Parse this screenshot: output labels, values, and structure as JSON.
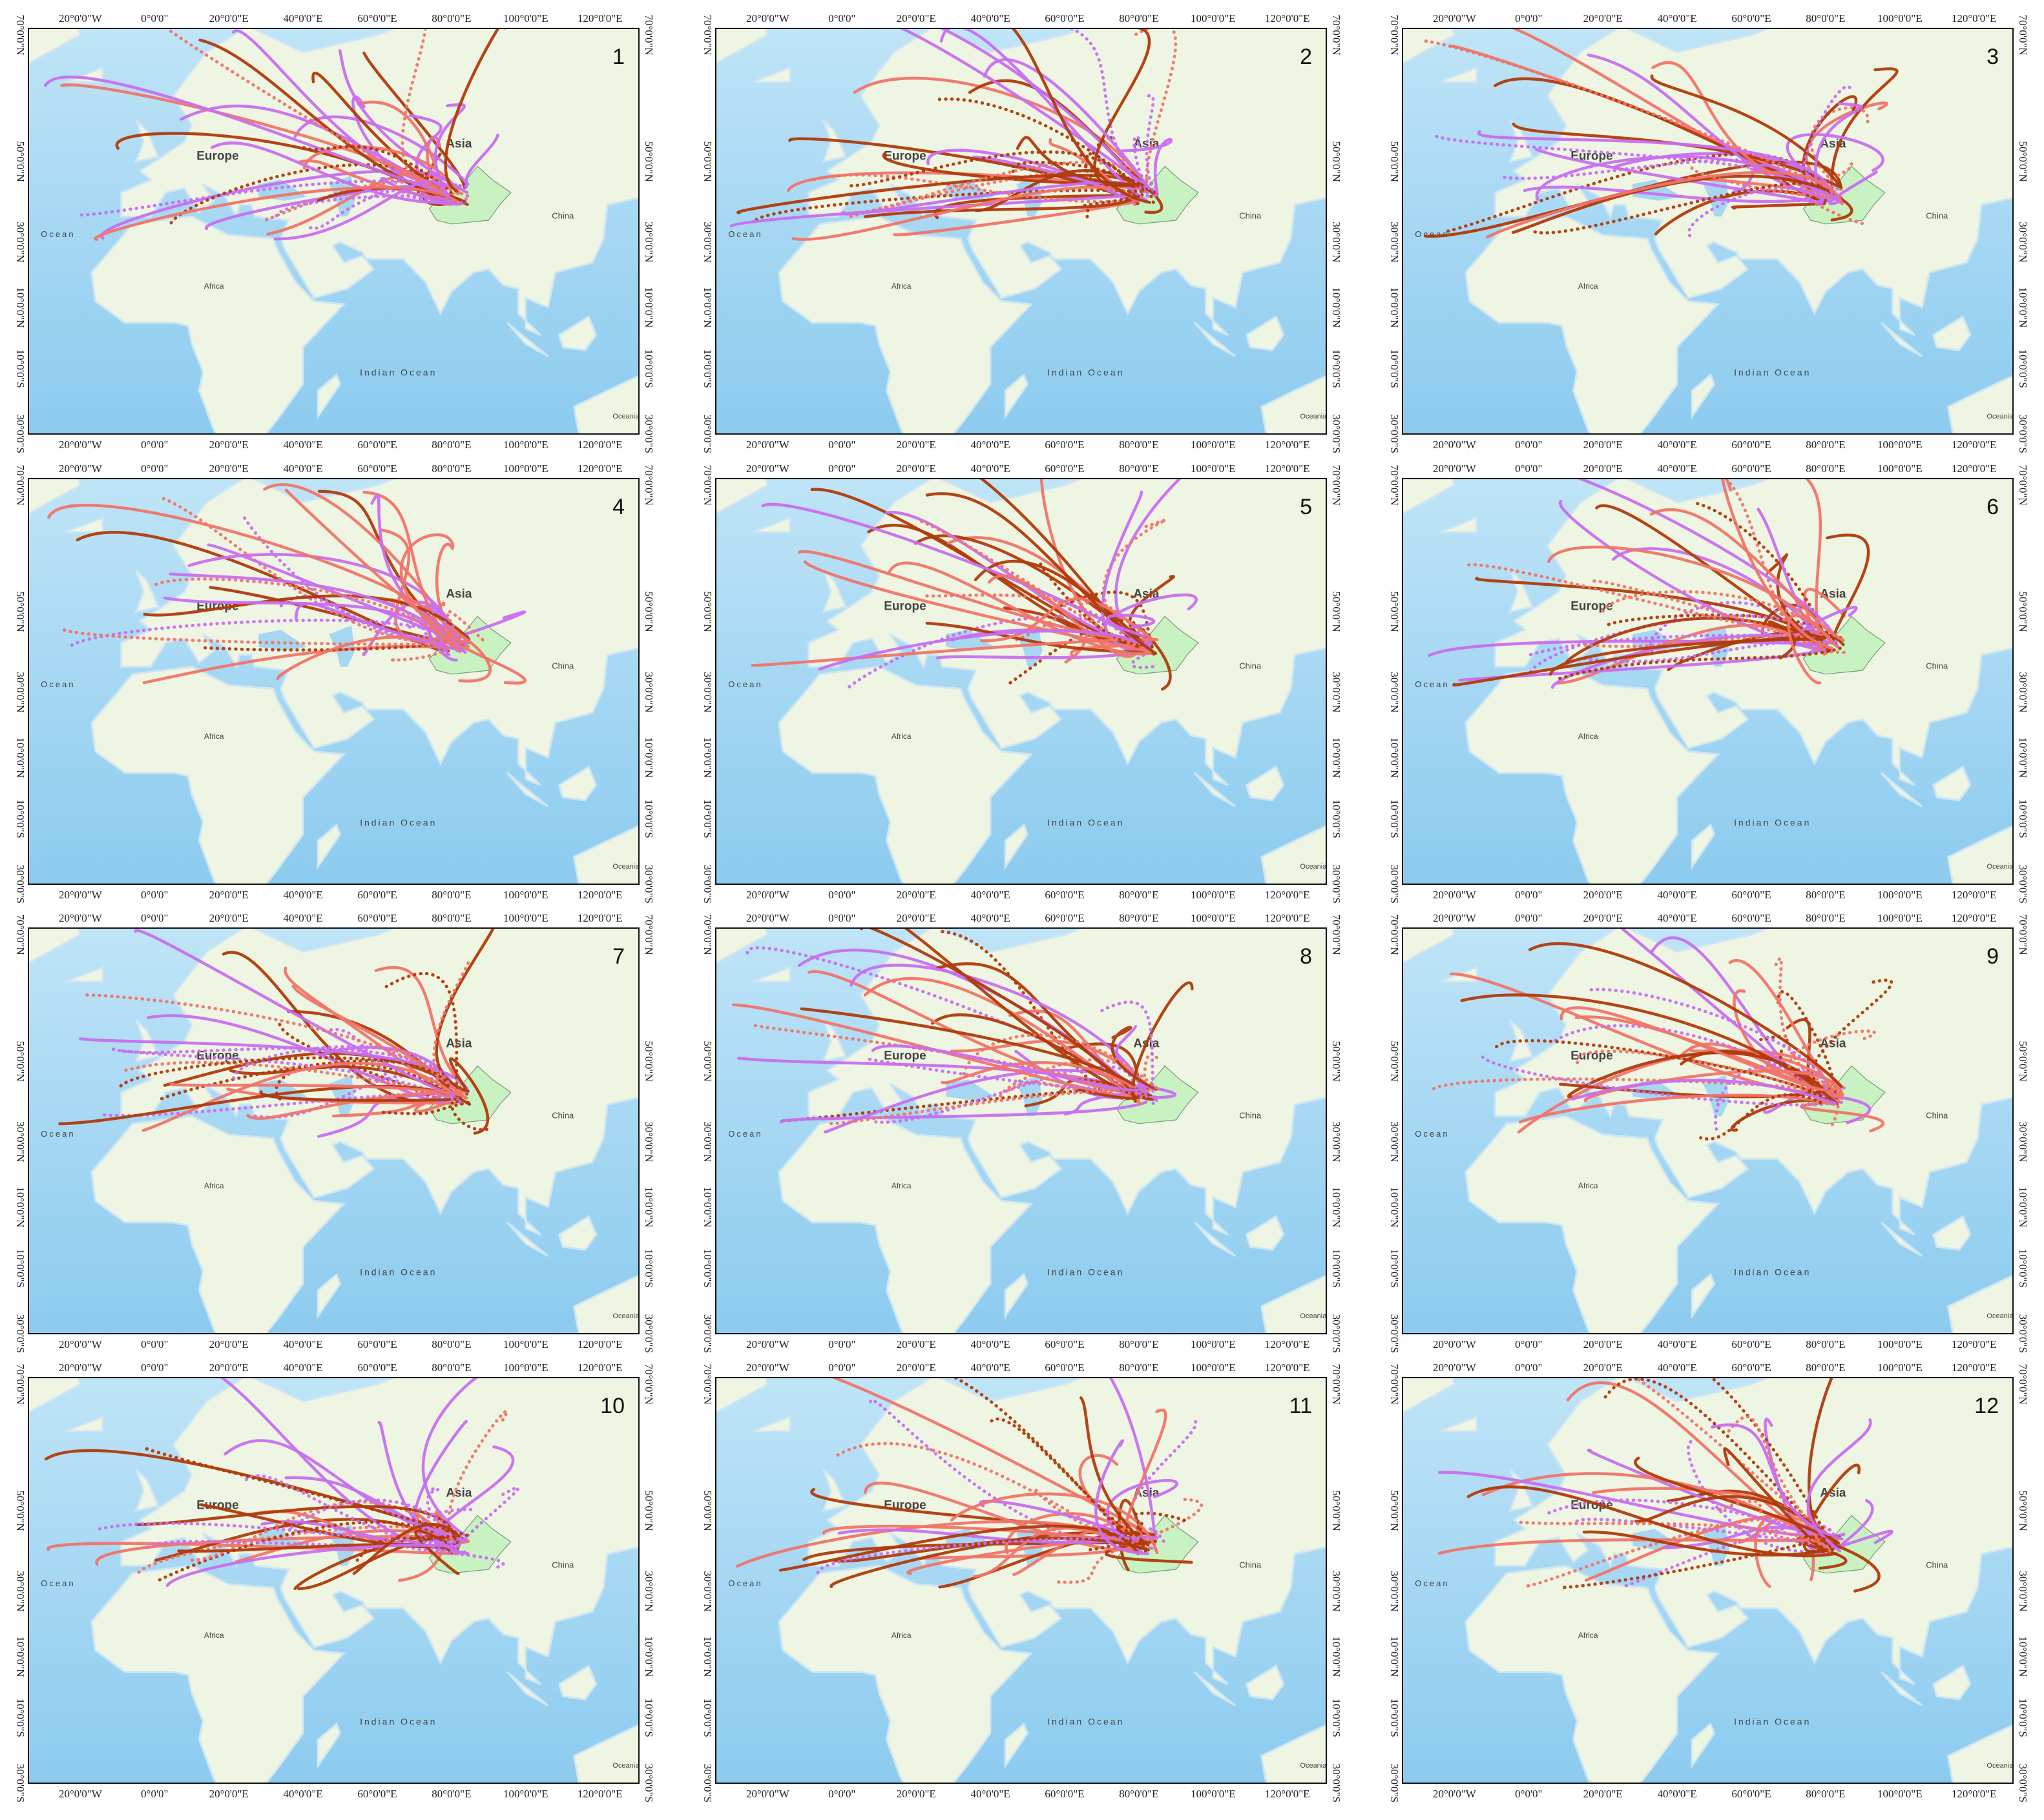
{
  "lon_ticks": [
    {
      "value": -20,
      "label": "20°0'0\"W"
    },
    {
      "value": 0,
      "label": "0°0'0\""
    },
    {
      "value": 20,
      "label": "20°0'0\"E"
    },
    {
      "value": 40,
      "label": "40°0'0\"E"
    },
    {
      "value": 60,
      "label": "60°0'0\"E"
    },
    {
      "value": 80,
      "label": "80°0'0\"E"
    },
    {
      "value": 100,
      "label": "100°0'0\"E"
    },
    {
      "value": 120,
      "label": "120°0'0\"E"
    }
  ],
  "lat_ticks": [
    {
      "value": 70,
      "label": "70°0'0\"N"
    },
    {
      "value": 50,
      "label": "50°0'0\"N"
    },
    {
      "value": 30,
      "label": "30°0'0\"N"
    },
    {
      "value": 10,
      "label": "10°0'0\"N"
    },
    {
      "value": -10,
      "label": "10°0'0\"S"
    },
    {
      "value": -30,
      "label": "30°0'0\"S"
    }
  ],
  "place_labels": {
    "europe": "Europe",
    "asia": "Asia",
    "china": "China",
    "africa": "Africa",
    "indian_ocean": "Indian Ocean",
    "ocean": "Ocean",
    "oceania": "Oceania"
  },
  "panels": [
    {
      "label": "1"
    },
    {
      "label": "2"
    },
    {
      "label": "3"
    },
    {
      "label": "4"
    },
    {
      "label": "5"
    },
    {
      "label": "6"
    },
    {
      "label": "7"
    },
    {
      "label": "8"
    },
    {
      "label": "9"
    },
    {
      "label": "10"
    },
    {
      "label": "11"
    },
    {
      "label": "12"
    }
  ]
}
